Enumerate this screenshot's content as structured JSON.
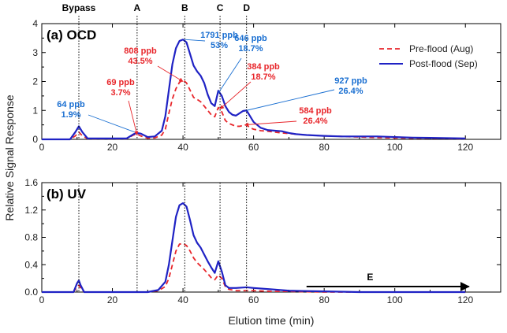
{
  "chart_data": [
    {
      "type": "line",
      "panel_label": "(a) OCD",
      "ylim": [
        0,
        4
      ],
      "yticks": [
        "0",
        "1",
        "2",
        "3",
        "4"
      ],
      "xlim": [
        0,
        130
      ],
      "xticks": [
        "0",
        "20",
        "40",
        "60",
        "80",
        "100",
        "120"
      ],
      "legend": {
        "placement": "top-right",
        "entries": [
          "Pre-flood (Aug)",
          "Post-flood (Sep)"
        ]
      },
      "colors": {
        "pre": "#e8262b",
        "post": "#1f22c4",
        "blue_text": "#1a6fd1"
      },
      "series": [
        {
          "name": "Pre-flood (Aug)",
          "x": [
            0,
            8,
            9.5,
            10.5,
            11.5,
            13,
            24,
            26,
            27,
            28,
            30,
            32,
            34,
            35,
            36,
            37,
            38,
            39,
            40,
            41,
            42,
            43,
            44,
            45,
            46,
            47,
            48,
            49,
            50,
            51,
            52,
            53,
            54,
            55,
            56,
            57,
            58,
            59,
            60,
            62,
            64,
            66,
            68,
            70,
            72,
            75,
            80,
            85,
            90,
            95,
            100,
            105,
            110,
            115,
            120
          ],
          "y": [
            0,
            0,
            0.12,
            0.25,
            0.12,
            0.02,
            0.02,
            0.15,
            0.18,
            0.12,
            0.04,
            0.05,
            0.15,
            0.35,
            0.9,
            1.4,
            1.75,
            1.97,
            2.05,
            1.95,
            1.7,
            1.45,
            1.38,
            1.3,
            1.15,
            1.0,
            0.85,
            0.78,
            1.1,
            0.95,
            0.65,
            0.55,
            0.5,
            0.45,
            0.45,
            0.48,
            0.5,
            0.4,
            0.35,
            0.3,
            0.28,
            0.25,
            0.22,
            0.2,
            0.18,
            0.15,
            0.12,
            0.1,
            0.08,
            0.06,
            0.05,
            0.04,
            0.04,
            0.03,
            0.02
          ]
        },
        {
          "name": "Post-flood (Sep)",
          "x": [
            0,
            8,
            9.5,
            10.5,
            11.5,
            13,
            24,
            26,
            27,
            28,
            30,
            32,
            34,
            35,
            36,
            37,
            38,
            39,
            40,
            41,
            42,
            43,
            44,
            45,
            46,
            47,
            48,
            49,
            50,
            51,
            52,
            53,
            54,
            55,
            56,
            57,
            58,
            59,
            60,
            62,
            64,
            66,
            68,
            70,
            72,
            75,
            80,
            85,
            90,
            95,
            100,
            105,
            110,
            115,
            120
          ],
          "y": [
            0,
            0,
            0.25,
            0.45,
            0.25,
            0.03,
            0.03,
            0.18,
            0.22,
            0.2,
            0.08,
            0.1,
            0.3,
            0.8,
            1.7,
            2.6,
            3.15,
            3.4,
            3.45,
            3.35,
            2.95,
            2.55,
            2.35,
            2.2,
            1.95,
            1.55,
            1.25,
            1.15,
            1.68,
            1.5,
            1.15,
            0.95,
            0.85,
            0.82,
            0.9,
            0.98,
            1.0,
            0.8,
            0.6,
            0.4,
            0.32,
            0.3,
            0.28,
            0.22,
            0.18,
            0.15,
            0.12,
            0.1,
            0.1,
            0.1,
            0.08,
            0.06,
            0.05,
            0.04,
            0.03
          ]
        }
      ],
      "vlines": [
        {
          "label": "Bypass",
          "x": 10.5
        },
        {
          "label": "A",
          "x": 27
        },
        {
          "label": "B",
          "x": 40.5
        },
        {
          "label": "C",
          "x": 50.5
        },
        {
          "label": "D",
          "x": 58
        }
      ],
      "annotations": [
        {
          "lines": [
            "64 ppb",
            "1.9%"
          ],
          "color": "blue",
          "target_x": 27,
          "target_y": 0.22
        },
        {
          "lines": [
            "69 ppb",
            "3.7%"
          ],
          "color": "red",
          "target_x": 27,
          "target_y": 0.15
        },
        {
          "lines": [
            "808 ppb",
            "43.5%"
          ],
          "color": "red",
          "target_x": 40,
          "target_y": 2.0
        },
        {
          "lines": [
            "1791 ppb",
            "53%"
          ],
          "color": "blue",
          "target_x": 40.5,
          "target_y": 3.45
        },
        {
          "lines": [
            "646 ppb",
            "18.7%"
          ],
          "color": "blue",
          "target_x": 50,
          "target_y": 1.6
        },
        {
          "lines": [
            "384 ppb",
            "18.7%"
          ],
          "color": "red",
          "target_x": 50.5,
          "target_y": 1.05
        },
        {
          "lines": [
            "927 ppb",
            "26.4%"
          ],
          "color": "blue",
          "target_x": 58,
          "target_y": 1.0
        },
        {
          "lines": [
            "584 ppb",
            "26.4%"
          ],
          "color": "red",
          "target_x": 57.5,
          "target_y": 0.5
        }
      ]
    },
    {
      "type": "line",
      "panel_label": "(b) UV",
      "ylim": [
        0,
        1.6
      ],
      "yticks": [
        "0.0",
        "0.4",
        "0.8",
        "1.2",
        "1.6"
      ],
      "xlim": [
        0,
        130
      ],
      "xticks": [
        "0",
        "20",
        "40",
        "60",
        "80",
        "100",
        "120"
      ],
      "xlabel": "Elution time (min)",
      "ylabel": "Relative Signal Response",
      "series": [
        {
          "name": "Pre-flood (Aug)",
          "x": [
            0,
            9,
            10,
            10.5,
            11,
            12,
            30,
            33,
            35,
            36,
            37,
            38,
            39,
            40,
            41,
            42,
            43,
            44,
            45,
            46,
            47,
            48,
            49,
            50,
            51,
            52,
            53,
            55,
            58,
            60,
            65,
            70,
            80,
            90,
            100,
            120
          ],
          "y": [
            0,
            0,
            0.08,
            0.1,
            0.06,
            0,
            0,
            0.02,
            0.08,
            0.2,
            0.4,
            0.6,
            0.7,
            0.71,
            0.68,
            0.6,
            0.5,
            0.43,
            0.38,
            0.33,
            0.27,
            0.21,
            0.18,
            0.25,
            0.2,
            0.08,
            0.04,
            0.02,
            0.02,
            0.02,
            0.01,
            0.01,
            0.0,
            0.0,
            0.0,
            0.0
          ]
        },
        {
          "name": "Post-flood (Sep)",
          "x": [
            0,
            9,
            10,
            10.5,
            11,
            12,
            30,
            33,
            35,
            36,
            37,
            38,
            39,
            40,
            41,
            42,
            43,
            44,
            45,
            46,
            47,
            48,
            49,
            50,
            51,
            52,
            53,
            55,
            58,
            60,
            65,
            70,
            80,
            90,
            100,
            120
          ],
          "y": [
            0,
            0,
            0.13,
            0.17,
            0.1,
            0,
            0,
            0.03,
            0.15,
            0.4,
            0.75,
            1.1,
            1.27,
            1.3,
            1.25,
            1.05,
            0.83,
            0.72,
            0.65,
            0.55,
            0.45,
            0.36,
            0.28,
            0.45,
            0.3,
            0.1,
            0.06,
            0.06,
            0.07,
            0.06,
            0.04,
            0.02,
            0.01,
            0.0,
            0.0,
            0.0
          ]
        }
      ],
      "arrow": {
        "label": "E",
        "x_start": 75,
        "x_end": 121,
        "y": 0.08
      }
    }
  ]
}
